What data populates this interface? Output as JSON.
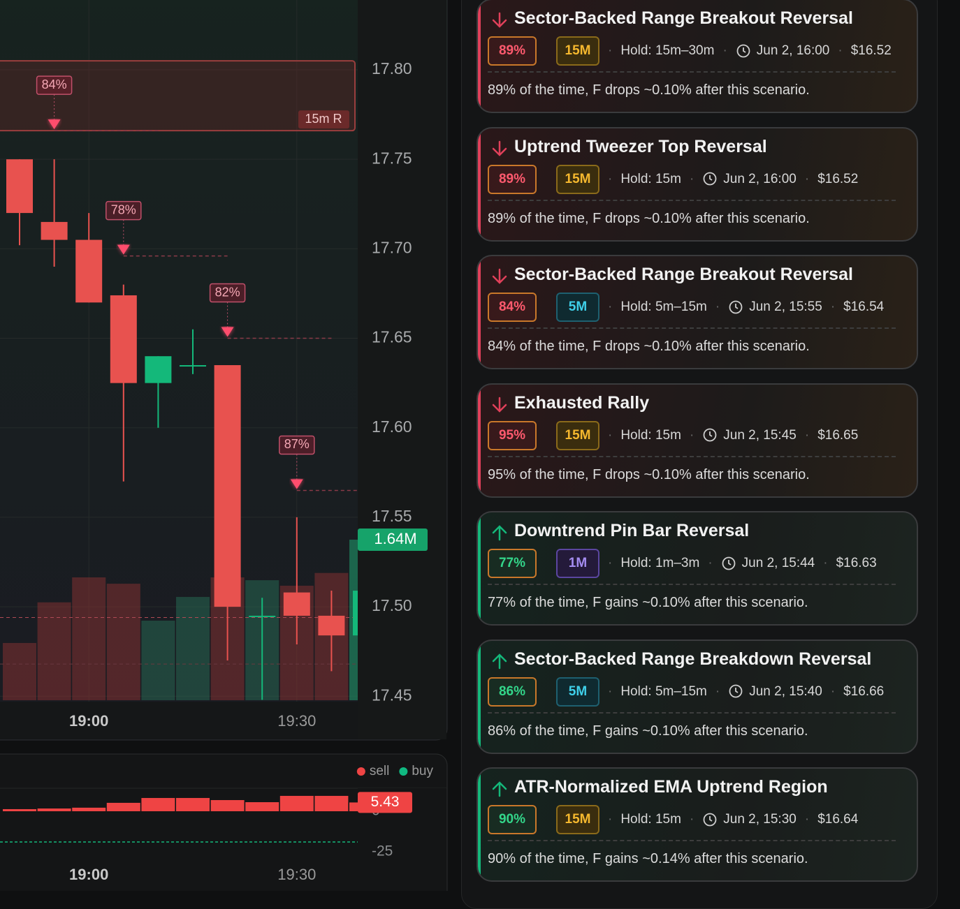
{
  "chart_data": [
    {
      "type": "candlestick",
      "categories": [
        null,
        null,
        "19:00",
        null,
        null,
        null,
        null,
        null,
        "19:30",
        null,
        null
      ],
      "open": [
        17.75,
        17.715,
        17.705,
        17.674,
        17.625,
        17.635,
        17.635,
        17.495,
        17.508,
        17.495,
        17.484
      ],
      "high": [
        17.75,
        17.75,
        17.72,
        17.68,
        17.64,
        17.655,
        17.635,
        17.505,
        17.55,
        17.509,
        17.512
      ],
      "low": [
        17.702,
        17.69,
        17.67,
        17.57,
        17.6,
        17.63,
        17.47,
        17.448,
        17.479,
        17.464,
        17.48
      ],
      "close": [
        17.72,
        17.705,
        17.67,
        17.625,
        17.64,
        17.635,
        17.5,
        17.495,
        17.495,
        17.484,
        17.509
      ],
      "ylim": [
        17.447,
        17.839
      ],
      "yticks": [
        {
          "value": 17.8,
          "label": "17.80"
        },
        17.75,
        {
          "value": 17.7,
          "label": "17.70"
        },
        17.65,
        {
          "value": 17.6,
          "label": "17.60"
        },
        17.55,
        {
          "value": 17.5,
          "label": "17.50"
        },
        17.45
      ],
      "up_color": "#14b87a",
      "down_color": "#e8524f",
      "volume": {
        "values": [
          0.585,
          1.0,
          1.255,
          1.19,
          0.813,
          1.055,
          1.255,
          1.226,
          1.17,
          1.3,
          1.64
        ],
        "value_labels": [
          null,
          null,
          null,
          null,
          null,
          null,
          null,
          null,
          null,
          null,
          "1.64M"
        ]
      },
      "range_box": {
        "top": 17.805,
        "bottom": 17.766,
        "label": "15m R"
      },
      "signals": [
        {
          "label": "84%",
          "candle": 1,
          "price": 17.766
        },
        {
          "label": "78%",
          "candle": 3,
          "price": 17.696
        },
        {
          "label": "82%",
          "candle": 6,
          "price": 17.65
        },
        {
          "label": "87%",
          "candle": 8,
          "price": 17.565
        }
      ],
      "price_lines": [
        17.494,
        17.468
      ]
    },
    {
      "type": "bar",
      "categories": [
        null,
        null,
        "19:00",
        null,
        null,
        null,
        null,
        null,
        "19:30",
        null,
        null
      ],
      "series": [
        {
          "name": "sell",
          "color": "#ef4444",
          "values": [
            1.3,
            1.7,
            2.2,
            5.2,
            8.2,
            8.2,
            6.9,
            5.6,
            9.5,
            9.5,
            5.43
          ],
          "value_labels": [
            null,
            null,
            null,
            null,
            null,
            null,
            null,
            null,
            null,
            null,
            "5.43"
          ]
        },
        {
          "name": "buy",
          "color": "#10b981",
          "values": [
            null,
            null,
            null,
            null,
            null,
            null,
            null,
            null,
            null,
            null,
            null
          ]
        }
      ],
      "ylim": [
        -27.2,
        13.8
      ],
      "yticks": [
        0,
        -25
      ],
      "reference_line": -19
    }
  ],
  "signals_panel": {
    "cards": [
      {
        "direction": "down",
        "title": "Sector-Backed Range Breakout Reversal",
        "confidence": "89%",
        "timeframe": "15M",
        "hold": "Hold: 15m–30m",
        "time": "Jun 2, 16:00",
        "price": "$16.52",
        "description": "89% of the time, F drops ~0.10% after this scenario."
      },
      {
        "direction": "down",
        "title": "Uptrend Tweezer Top Reversal",
        "confidence": "89%",
        "timeframe": "15M",
        "hold": "Hold: 15m",
        "time": "Jun 2, 16:00",
        "price": "$16.52",
        "description": "89% of the time, F drops ~0.10% after this scenario."
      },
      {
        "direction": "down",
        "title": "Sector-Backed Range Breakout Reversal",
        "confidence": "84%",
        "timeframe": "5M",
        "hold": "Hold: 5m–15m",
        "time": "Jun 2, 15:55",
        "price": "$16.54",
        "description": "84% of the time, F drops ~0.10% after this scenario."
      },
      {
        "direction": "down",
        "title": "Exhausted Rally",
        "confidence": "95%",
        "timeframe": "15M",
        "hold": "Hold: 15m",
        "time": "Jun 2, 15:45",
        "price": "$16.65",
        "description": "95% of the time, F drops ~0.10% after this scenario."
      },
      {
        "direction": "up",
        "title": "Downtrend Pin Bar Reversal",
        "confidence": "77%",
        "timeframe": "1M",
        "hold": "Hold: 1m–3m",
        "time": "Jun 2, 15:44",
        "price": "$16.63",
        "description": "77% of the time, F gains ~0.10% after this scenario."
      },
      {
        "direction": "up",
        "title": "Sector-Backed Range Breakdown Reversal",
        "confidence": "86%",
        "timeframe": "5M",
        "hold": "Hold: 5m–15m",
        "time": "Jun 2, 15:40",
        "price": "$16.66",
        "description": "86% of the time, F gains ~0.10% after this scenario."
      },
      {
        "direction": "up",
        "title": "ATR-Normalized EMA Uptrend Region",
        "confidence": "90%",
        "timeframe": "15M",
        "hold": "Hold: 15m",
        "time": "Jun 2, 15:30",
        "price": "$16.64",
        "description": "90% of the time, F gains ~0.14% after this scenario."
      }
    ]
  }
}
